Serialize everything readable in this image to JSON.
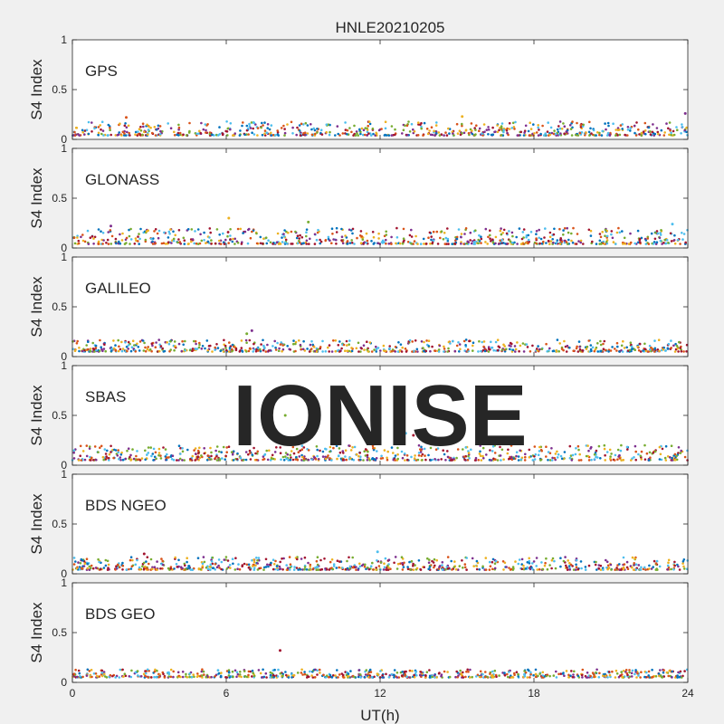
{
  "figure": {
    "title": "HNLE20210205",
    "xlabel": "UT(h)",
    "watermark": "IONISE",
    "background": "#f0f0f0",
    "axes_background": "#ffffff",
    "watermark_color": "#e6e6e6",
    "series_colors": [
      "#0072bd",
      "#d95319",
      "#edb120",
      "#7e2f8e",
      "#77ac30",
      "#4dbeee",
      "#a2142f"
    ]
  },
  "chart_data": [
    {
      "type": "scatter",
      "system": "GPS",
      "ylabel": "S4 Index",
      "xlim": [
        0,
        24
      ],
      "ylim": [
        0,
        1
      ],
      "xticks": [
        0,
        6,
        12,
        18,
        24
      ],
      "yticks": [
        0,
        0.5,
        1
      ],
      "typical_s4_range": [
        0.04,
        0.18
      ],
      "peaks": [
        {
          "x": 2.1,
          "y": 0.22
        },
        {
          "x": 15.2,
          "y": 0.23
        },
        {
          "x": 23.9,
          "y": 0.26
        }
      ]
    },
    {
      "type": "scatter",
      "system": "GLONASS",
      "ylabel": "S4 Index",
      "xlim": [
        0,
        24
      ],
      "ylim": [
        0,
        1
      ],
      "xticks": [
        0,
        6,
        12,
        18,
        24
      ],
      "yticks": [
        0,
        0.5,
        1
      ],
      "typical_s4_range": [
        0.04,
        0.2
      ],
      "peaks": [
        {
          "x": 6.1,
          "y": 0.3
        },
        {
          "x": 1.5,
          "y": 0.22
        },
        {
          "x": 9.2,
          "y": 0.26
        },
        {
          "x": 23.4,
          "y": 0.24
        }
      ]
    },
    {
      "type": "scatter",
      "system": "GALILEO",
      "ylabel": "S4 Index",
      "xlim": [
        0,
        24
      ],
      "ylim": [
        0,
        1
      ],
      "xticks": [
        0,
        6,
        12,
        18,
        24
      ],
      "yticks": [
        0,
        0.5,
        1
      ],
      "typical_s4_range": [
        0.05,
        0.17
      ],
      "peaks": [
        {
          "x": 7.0,
          "y": 0.26
        },
        {
          "x": 6.8,
          "y": 0.23
        }
      ]
    },
    {
      "type": "scatter",
      "system": "SBAS",
      "ylabel": "S4 Index",
      "xlim": [
        0,
        24
      ],
      "ylim": [
        0,
        1
      ],
      "xticks": [
        0,
        6,
        12,
        18,
        24
      ],
      "yticks": [
        0,
        0.5,
        1
      ],
      "typical_s4_range": [
        0.05,
        0.2
      ],
      "peaks": [
        {
          "x": 8.3,
          "y": 0.5
        },
        {
          "x": 13.0,
          "y": 0.32
        },
        {
          "x": 13.3,
          "y": 0.3
        },
        {
          "x": 13.6,
          "y": 0.27
        },
        {
          "x": 14.0,
          "y": 0.24
        }
      ]
    },
    {
      "type": "scatter",
      "system": "BDS NGEO",
      "ylabel": "S4 Index",
      "xlim": [
        0,
        24
      ],
      "ylim": [
        0,
        1
      ],
      "xticks": [
        0,
        6,
        12,
        18,
        24
      ],
      "yticks": [
        0,
        0.5,
        1
      ],
      "typical_s4_range": [
        0.04,
        0.17
      ],
      "peaks": [
        {
          "x": 11.9,
          "y": 0.22
        },
        {
          "x": 2.8,
          "y": 0.2
        }
      ]
    },
    {
      "type": "scatter",
      "system": "BDS GEO",
      "ylabel": "S4 Index",
      "xlim": [
        0,
        24
      ],
      "ylim": [
        0,
        1
      ],
      "xticks": [
        0,
        6,
        12,
        18,
        24
      ],
      "yticks": [
        0,
        0.5,
        1
      ],
      "typical_s4_range": [
        0.05,
        0.13
      ],
      "peaks": [
        {
          "x": 8.1,
          "y": 0.32
        }
      ]
    }
  ]
}
